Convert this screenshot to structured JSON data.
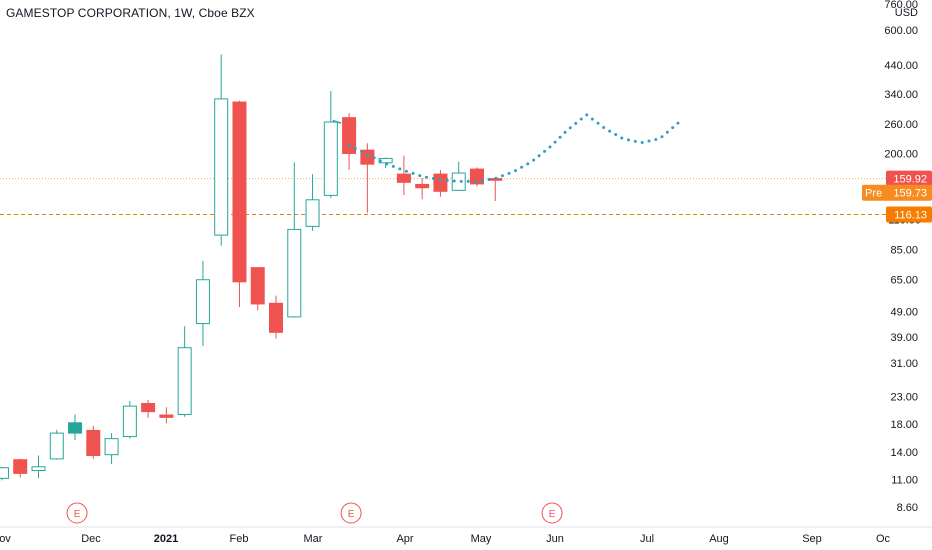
{
  "header": {
    "title": "GAMESTOP CORPORATION, 1W, Cboe BZX"
  },
  "colors": {
    "up": "#26a69a",
    "down": "#ef5350",
    "projection": "#2e9fc4",
    "last_price_line": "#f7a35c",
    "last_price_box": "#ef5350",
    "pre_box": "#f68b1f",
    "level_line": "#f57c00",
    "earnings": "#ef5350",
    "axis_text": "#131722"
  },
  "chart_data": {
    "type": "candlestick",
    "title": "GAMESTOP CORPORATION, 1W, Cboe BZX",
    "y_scale": "log",
    "currency": "USD",
    "y_ticks": [
      "760.00",
      "600.00",
      "440.00",
      "340.00",
      "260.00",
      "200.00",
      "159.92",
      "116.13",
      "85.00",
      "65.00",
      "49.00",
      "39.00",
      "31.00",
      "23.00",
      "18.00",
      "14.00",
      "11.00",
      "8.60"
    ],
    "x_ticks": [
      "ov",
      "Dec",
      "2021",
      "Feb",
      "Mar",
      "Apr",
      "May",
      "Jun",
      "Jul",
      "Aug",
      "Sep",
      "Oc"
    ],
    "candles": [
      {
        "date": "2020-11-09",
        "open": 11.1,
        "high": 12.3,
        "low": 10.9,
        "close": 12.2,
        "style": "hollow-up"
      },
      {
        "date": "2020-11-16",
        "open": 11.6,
        "high": 13.2,
        "low": 11.2,
        "close": 13.1,
        "style": "down"
      },
      {
        "date": "2020-11-23",
        "open": 11.9,
        "high": 13.6,
        "low": 11.1,
        "close": 12.3,
        "style": "hollow-up"
      },
      {
        "date": "2020-11-30",
        "open": 13.2,
        "high": 17.1,
        "low": 13.1,
        "close": 16.6,
        "style": "hollow-up"
      },
      {
        "date": "2020-12-07",
        "open": 18.2,
        "high": 19.6,
        "low": 15.6,
        "close": 16.6,
        "style": "filled-up"
      },
      {
        "date": "2020-12-14",
        "open": 17.0,
        "high": 17.7,
        "low": 13.2,
        "close": 13.6,
        "style": "down"
      },
      {
        "date": "2020-12-21",
        "open": 13.7,
        "high": 16.6,
        "low": 12.6,
        "close": 15.8,
        "style": "hollow-up"
      },
      {
        "date": "2020-12-28",
        "open": 16.1,
        "high": 22.1,
        "low": 15.8,
        "close": 21.1,
        "style": "hollow-up"
      },
      {
        "date": "2021-01-04",
        "open": 21.6,
        "high": 22.3,
        "low": 19.0,
        "close": 20.1,
        "style": "down"
      },
      {
        "date": "2021-01-11",
        "open": 19.1,
        "high": 20.9,
        "low": 18.1,
        "close": 19.5,
        "style": "down"
      },
      {
        "date": "2021-01-18",
        "open": 19.6,
        "high": 43.0,
        "low": 19.2,
        "close": 35.5,
        "style": "hollow-up"
      },
      {
        "date": "2021-01-25",
        "open": 44.0,
        "high": 76.8,
        "low": 36.0,
        "close": 65.0,
        "style": "hollow-up"
      },
      {
        "date": "2021-02-01",
        "open": 96.7,
        "high": 483.0,
        "low": 88.0,
        "close": 325.0,
        "style": "hollow-up"
      },
      {
        "date": "2021-02-08",
        "open": 316.0,
        "high": 320.0,
        "low": 51.0,
        "close": 63.8,
        "style": "down"
      },
      {
        "date": "2021-02-15",
        "open": 72.4,
        "high": 72.6,
        "low": 49.5,
        "close": 52.4,
        "style": "down"
      },
      {
        "date": "2021-02-22",
        "open": 52.7,
        "high": 56.4,
        "low": 38.5,
        "close": 40.7,
        "style": "down"
      },
      {
        "date": "2021-03-01",
        "open": 46.7,
        "high": 184.7,
        "low": 46.5,
        "close": 101.7,
        "style": "hollow-up"
      },
      {
        "date": "2021-03-08",
        "open": 104.5,
        "high": 166.3,
        "low": 100.5,
        "close": 132.4,
        "style": "hollow-up"
      },
      {
        "date": "2021-03-15",
        "open": 137.7,
        "high": 348.5,
        "low": 134.5,
        "close": 264.5,
        "style": "hollow-up"
      },
      {
        "date": "2021-03-22",
        "open": 275.0,
        "high": 286.6,
        "low": 172.8,
        "close": 200.0,
        "style": "down"
      },
      {
        "date": "2021-03-29",
        "open": 206.0,
        "high": 218.9,
        "low": 118.0,
        "close": 181.8,
        "style": "down"
      },
      {
        "date": "2021-04-05",
        "open": 184.0,
        "high": 192.8,
        "low": 175.6,
        "close": 191.3,
        "style": "hollow-down"
      },
      {
        "date": "2021-04-12",
        "open": 166.4,
        "high": 196.0,
        "low": 138.0,
        "close": 154.7,
        "style": "down"
      },
      {
        "date": "2021-04-19",
        "open": 151.8,
        "high": 160.6,
        "low": 133.0,
        "close": 147.4,
        "style": "down"
      },
      {
        "date": "2021-04-26",
        "open": 166.4,
        "high": 172.6,
        "low": 136.0,
        "close": 142.8,
        "style": "down"
      },
      {
        "date": "2021-05-03",
        "open": 144.0,
        "high": 186.0,
        "low": 143.0,
        "close": 168.0,
        "style": "hollow-up"
      },
      {
        "date": "2021-05-10",
        "open": 174.0,
        "high": 176.5,
        "low": 149.0,
        "close": 152.5,
        "style": "down"
      },
      {
        "date": "2021-05-17",
        "open": 157.5,
        "high": 158.5,
        "low": 131.0,
        "close": 159.9,
        "style": "down"
      }
    ],
    "projection_arrow": {
      "x": [
        "2021-03-15",
        "2021-03-22"
      ],
      "y": [
        268.0,
        262.0
      ]
    },
    "projection_path": {
      "x": [
        "2021-03-22",
        "2021-03-29",
        "2021-04-05",
        "2021-04-12",
        "2021-04-19",
        "2021-04-26",
        "2021-05-03",
        "2021-05-10",
        "2021-05-17",
        "2021-05-24",
        "2021-05-31",
        "2021-06-07",
        "2021-06-14",
        "2021-06-21",
        "2021-06-28",
        "2021-07-05",
        "2021-07-12",
        "2021-07-19",
        "2021-07-26"
      ],
      "y": [
        215,
        198,
        183,
        172,
        163,
        158,
        156,
        156,
        160,
        170,
        186,
        212,
        248,
        282,
        250,
        228,
        220,
        228,
        262
      ]
    },
    "levels": [
      {
        "label": "159.92",
        "value": 159.92,
        "style": "dotted",
        "role": "last"
      },
      {
        "label": "159.73",
        "tag": "Pre",
        "value": 159.73,
        "style": "none",
        "role": "pre"
      },
      {
        "label": "116.13",
        "value": 116.13,
        "style": "dashed",
        "role": "support"
      }
    ],
    "earnings_markers": [
      {
        "date": "2020-12-07",
        "label": "E"
      },
      {
        "date": "2021-03-22",
        "label": "E"
      },
      {
        "date": "2021-06-07",
        "label": "E"
      }
    ]
  }
}
